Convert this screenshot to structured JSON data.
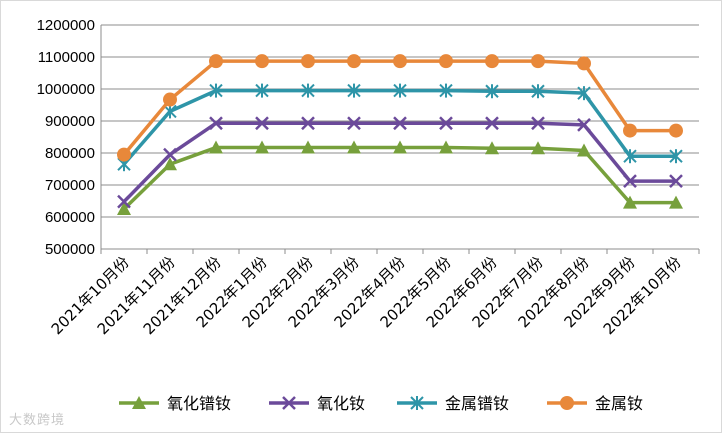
{
  "chart_data": {
    "type": "line",
    "title": "",
    "xlabel": "",
    "ylabel": "",
    "ylim": [
      500000,
      1200000
    ],
    "ystep": 100000,
    "grid": true,
    "legend_position": "bottom",
    "categories": [
      "2021年10月份",
      "2021年11月份",
      "2021年12月份",
      "2022年1月份",
      "2022年2月份",
      "2022年3月份",
      "2022年4月份",
      "2022年5月份",
      "2022年6月份",
      "2022年7月份",
      "2022年8月份",
      "2022年9月份",
      "2022年10月份"
    ],
    "series": [
      {
        "name": "氧化镨钕",
        "color": "#77a03c",
        "marker": "triangle",
        "values": [
          625000,
          765000,
          817000,
          817000,
          817000,
          817000,
          817000,
          817000,
          815000,
          815000,
          808000,
          645000,
          645000
        ]
      },
      {
        "name": "氧化钕",
        "color": "#6b4a9a",
        "marker": "x",
        "values": [
          648000,
          795000,
          893000,
          893000,
          893000,
          893000,
          893000,
          893000,
          893000,
          893000,
          888000,
          712000,
          712000
        ]
      },
      {
        "name": "金属镨钕",
        "color": "#2e95a8",
        "marker": "star",
        "values": [
          765000,
          930000,
          995000,
          995000,
          995000,
          995000,
          995000,
          995000,
          993000,
          993000,
          987000,
          790000,
          790000
        ]
      },
      {
        "name": "金属钕",
        "color": "#e8883a",
        "marker": "circle",
        "values": [
          795000,
          967000,
          1087000,
          1087000,
          1087000,
          1087000,
          1087000,
          1087000,
          1087000,
          1087000,
          1080000,
          870000,
          870000
        ]
      }
    ]
  },
  "watermark": "大数跨境"
}
